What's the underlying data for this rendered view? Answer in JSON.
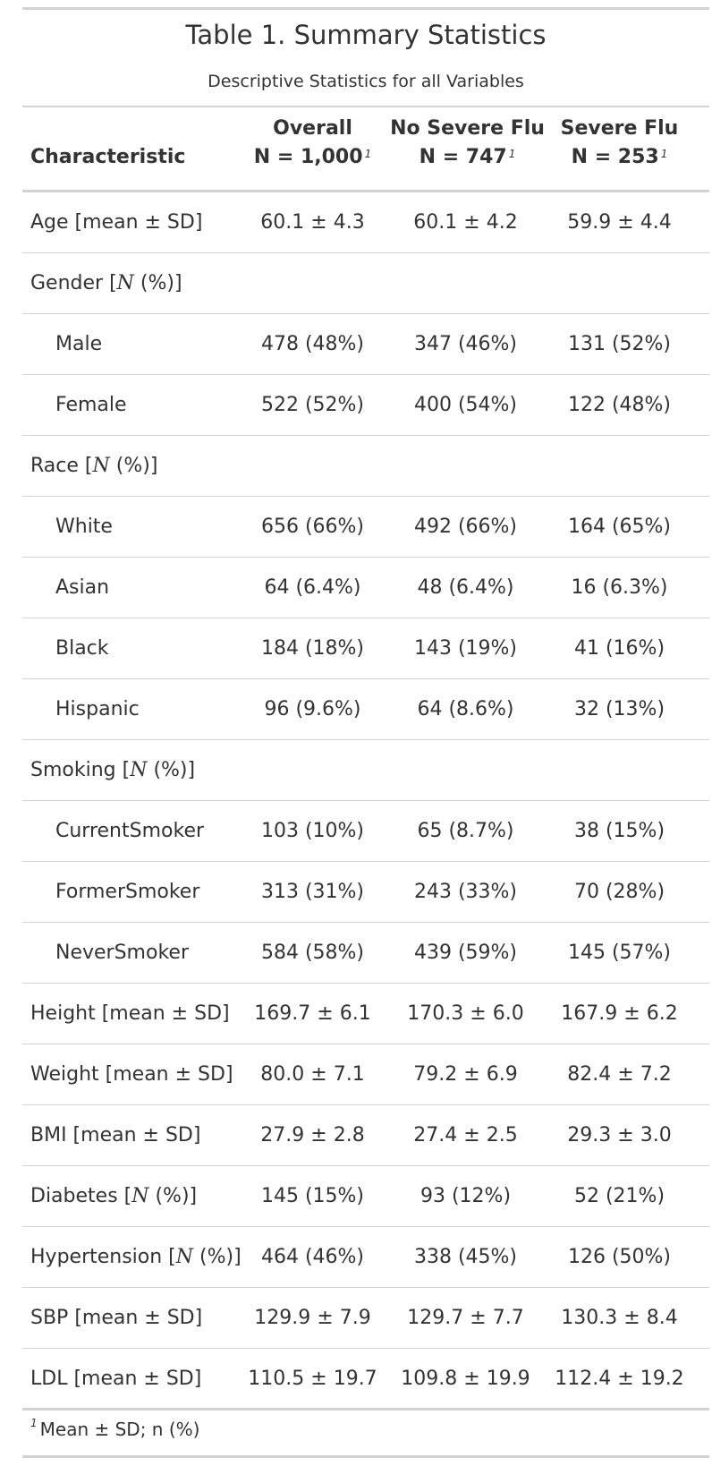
{
  "title": "Table 1. Summary Statistics",
  "subtitle": "Descriptive Statistics for all Variables",
  "header": {
    "characteristic": "Characteristic",
    "columns": [
      {
        "name": "Overall",
        "n": "N = 1,000",
        "mark": "1"
      },
      {
        "name": "No Severe Flu",
        "n": "N = 747",
        "mark": "1"
      },
      {
        "name": "Severe Flu",
        "n": "N = 253",
        "mark": "1"
      }
    ]
  },
  "rows": [
    {
      "label": "Age [mean ± SD]",
      "indent": false,
      "values": [
        "60.1 ± 4.3",
        "60.1 ± 4.2",
        "59.9 ± 4.4"
      ]
    },
    {
      "label": "Gender [N (%)]",
      "indent": false,
      "values": [
        "",
        "",
        ""
      ]
    },
    {
      "label": "Male",
      "indent": true,
      "values": [
        "478 (48%)",
        "347 (46%)",
        "131 (52%)"
      ]
    },
    {
      "label": "Female",
      "indent": true,
      "values": [
        "522 (52%)",
        "400 (54%)",
        "122 (48%)"
      ]
    },
    {
      "label": "Race [N (%)]",
      "indent": false,
      "values": [
        "",
        "",
        ""
      ]
    },
    {
      "label": "White",
      "indent": true,
      "values": [
        "656 (66%)",
        "492 (66%)",
        "164 (65%)"
      ]
    },
    {
      "label": "Asian",
      "indent": true,
      "values": [
        "64 (6.4%)",
        "48 (6.4%)",
        "16 (6.3%)"
      ]
    },
    {
      "label": "Black",
      "indent": true,
      "values": [
        "184 (18%)",
        "143 (19%)",
        "41 (16%)"
      ]
    },
    {
      "label": "Hispanic",
      "indent": true,
      "values": [
        "96 (9.6%)",
        "64 (8.6%)",
        "32 (13%)"
      ]
    },
    {
      "label": "Smoking [N (%)]",
      "indent": false,
      "values": [
        "",
        "",
        ""
      ]
    },
    {
      "label": "CurrentSmoker",
      "indent": true,
      "values": [
        "103 (10%)",
        "65 (8.7%)",
        "38 (15%)"
      ]
    },
    {
      "label": "FormerSmoker",
      "indent": true,
      "values": [
        "313 (31%)",
        "243 (33%)",
        "70 (28%)"
      ]
    },
    {
      "label": "NeverSmoker",
      "indent": true,
      "values": [
        "584 (58%)",
        "439 (59%)",
        "145 (57%)"
      ]
    },
    {
      "label": "Height [mean ± SD]",
      "indent": false,
      "values": [
        "169.7 ± 6.1",
        "170.3 ± 6.0",
        "167.9 ± 6.2"
      ]
    },
    {
      "label": "Weight [mean ± SD]",
      "indent": false,
      "values": [
        "80.0 ± 7.1",
        "79.2 ± 6.9",
        "82.4 ± 7.2"
      ]
    },
    {
      "label": "BMI [mean ± SD]",
      "indent": false,
      "values": [
        "27.9 ± 2.8",
        "27.4 ± 2.5",
        "29.3 ± 3.0"
      ]
    },
    {
      "label": "Diabetes [N (%)]",
      "indent": false,
      "values": [
        "145 (15%)",
        "93 (12%)",
        "52 (21%)"
      ]
    },
    {
      "label": "Hypertension [N (%)]",
      "indent": false,
      "values": [
        "464 (46%)",
        "338 (45%)",
        "126 (50%)"
      ]
    },
    {
      "label": "SBP [mean ± SD]",
      "indent": false,
      "values": [
        "129.9 ± 7.9",
        "129.7 ± 7.7",
        "130.3 ± 8.4"
      ]
    },
    {
      "label": "LDL [mean ± SD]",
      "indent": false,
      "values": [
        "110.5 ± 19.7",
        "109.8 ± 19.9",
        "112.4 ± 19.2"
      ]
    }
  ],
  "footnote": {
    "mark": "1",
    "text": "Mean ± SD; n (%)"
  }
}
